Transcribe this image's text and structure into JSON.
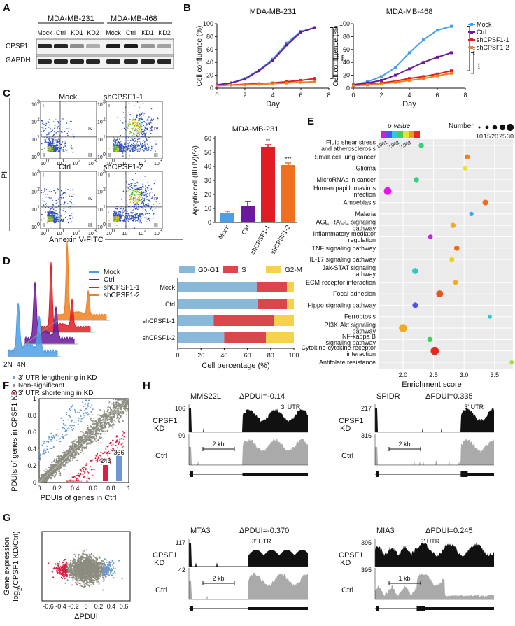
{
  "panel_labels": [
    "A",
    "B",
    "C",
    "D",
    "E",
    "F",
    "G",
    "H"
  ],
  "A": {
    "groups": [
      "MDA-MB-231",
      "MDA-MB-468"
    ],
    "lanes": [
      "Mock",
      "Ctrl",
      "KD1",
      "KD2",
      "Mock",
      "Ctrl",
      "KD1",
      "KD2"
    ],
    "rows": [
      "CPSF1",
      "GAPDH"
    ]
  },
  "B": {
    "ylabel": "Cell confluence (%)",
    "xlabel": "Day",
    "legend": [
      "Mock",
      "Ctrl",
      "shCPSF1-1",
      "shCPSF1-2"
    ],
    "sig": "***",
    "colors": {
      "Mock": "#4a9fe8",
      "Ctrl": "#6a1a9a",
      "sh1": "#e01c24",
      "sh2": "#f08020"
    },
    "chart_data": [
      {
        "type": "line",
        "title": "MDA-MB-231",
        "xlabel": "Day",
        "ylabel": "Cell confluence (%)",
        "x": [
          0,
          1,
          2,
          3,
          4,
          5,
          6,
          7
        ],
        "xlim": [
          0,
          8
        ],
        "ylim": [
          0,
          100
        ],
        "xticks": [
          0,
          2,
          4,
          6,
          8
        ],
        "yticks": [
          0,
          20,
          40,
          60,
          80,
          100
        ],
        "series": [
          {
            "name": "Mock",
            "values": [
              5,
              8,
              15,
              28,
              45,
              70,
              88,
              94
            ]
          },
          {
            "name": "Ctrl",
            "values": [
              5,
              8,
              14,
              27,
              43,
              67,
              87,
              94
            ]
          },
          {
            "name": "shCPSF1-1",
            "values": [
              4,
              5,
              6,
              7,
              8,
              10,
              12,
              15
            ]
          },
          {
            "name": "shCPSF1-2",
            "values": [
              4,
              5,
              5,
              6,
              7,
              8,
              9,
              10
            ]
          }
        ]
      },
      {
        "type": "line",
        "title": "MDA-MB-468",
        "xlabel": "Day",
        "ylabel": "Cell confluence (%)",
        "x": [
          0,
          1,
          2,
          3,
          4,
          5,
          6,
          7
        ],
        "xlim": [
          0,
          8
        ],
        "ylim": [
          0,
          100
        ],
        "xticks": [
          0,
          2,
          4,
          6,
          8
        ],
        "yticks": [
          0,
          20,
          40,
          60,
          80,
          100
        ],
        "series": [
          {
            "name": "Mock",
            "values": [
              5,
              10,
              18,
              32,
              55,
              75,
              90,
              96
            ]
          },
          {
            "name": "Ctrl",
            "values": [
              5,
              8,
              12,
              20,
              30,
              40,
              48,
              55
            ]
          },
          {
            "name": "shCPSF1-1",
            "values": [
              4,
              6,
              8,
              11,
              15,
              18,
              22,
              27
            ]
          },
          {
            "name": "shCPSF1-2",
            "values": [
              4,
              5,
              7,
              9,
              12,
              15,
              19,
              23
            ]
          }
        ]
      }
    ]
  },
  "C": {
    "plots": [
      "Mock",
      "shCPSF1-1",
      "Ctrl",
      "shCPSF1-2"
    ],
    "quadrants": [
      "I",
      "II",
      "III",
      "IV"
    ],
    "yaxis": "PI",
    "xaxis": "Annexin V-FITC",
    "tick_exponents": [
      "0",
      "1",
      "2",
      "3"
    ],
    "bar": {
      "chart_data": {
        "type": "bar",
        "title": "MDA-MB-231",
        "ylabel": "Apoptic cell (III+IV)(%)",
        "categories": [
          "Mock",
          "Ctrl",
          "shCPSF1-1",
          "shCPSF1-2"
        ],
        "values": [
          7,
          12,
          54,
          41
        ],
        "errors": [
          1,
          3,
          1.5,
          1.5
        ],
        "ylim": [
          0,
          60
        ],
        "yticks": [
          0,
          10,
          20,
          30,
          40,
          50,
          60
        ],
        "colors": [
          "#4a9fe8",
          "#6a1a9a",
          "#e01c24",
          "#f07020"
        ],
        "sig": [
          "",
          "",
          "**",
          "***"
        ]
      }
    }
  },
  "D": {
    "legend": [
      "Mock",
      "Ctrl",
      "shCPSF1-1",
      "shCPSF1-2"
    ],
    "colors": [
      "#4a9fe8",
      "#6a1a9a",
      "#e01c24",
      "#f08020"
    ],
    "ploidy": [
      "2N",
      "4N"
    ],
    "chart_data": {
      "type": "bar",
      "orientation": "horizontal",
      "stacked": true,
      "xlabel": "Cell percentage (%)",
      "xlim": [
        0,
        100
      ],
      "xticks": [
        0,
        20,
        40,
        60,
        80,
        100
      ],
      "categories": [
        "Mock",
        "Ctrl",
        "shCPSF1-1",
        "shCPSF1-2"
      ],
      "series": [
        {
          "name": "G0-G1",
          "color": "#8ab8d8",
          "values": [
            68,
            69,
            31,
            40
          ]
        },
        {
          "name": "S",
          "color": "#d9464c",
          "values": [
            26,
            25,
            52,
            36
          ]
        },
        {
          "name": "G2-M",
          "color": "#f5d24a",
          "values": [
            6,
            6,
            17,
            24
          ]
        }
      ]
    }
  },
  "E": {
    "chart_data": {
      "type": "scatter",
      "xlabel": "Enrichment score",
      "xlim": [
        1.6,
        3.8
      ],
      "xticks": [
        2.0,
        2.5,
        3.0,
        3.5
      ],
      "color_legend": {
        "title": "p value",
        "ticks": [
          "0.001",
          "0.002",
          "0.003"
        ]
      },
      "size_legend": {
        "title": "Number",
        "ticks": [
          "10",
          "15",
          "20",
          "25",
          "30"
        ]
      },
      "terms": [
        {
          "term": "Fluid shear stress and atherosclerosis",
          "x": 2.3,
          "n": 15,
          "p": 0.0015
        },
        {
          "term": "Small cell lung cancer",
          "x": 3.05,
          "n": 16,
          "p": 0.0026
        },
        {
          "term": "Glioma",
          "x": 3.02,
          "n": 12,
          "p": 0.0021
        },
        {
          "term": "MicroRNAs in cancer",
          "x": 2.22,
          "n": 15,
          "p": 0.0015
        },
        {
          "term": "Human papillomavirus infection",
          "x": 1.75,
          "n": 28,
          "p": 0.0003
        },
        {
          "term": "Amoebiasis",
          "x": 3.35,
          "n": 18,
          "p": 0.0027
        },
        {
          "term": "Malaria",
          "x": 3.12,
          "n": 11,
          "p": 0.0011
        },
        {
          "term": "AGE-RAGE signaling pathway",
          "x": 2.82,
          "n": 15,
          "p": 0.0024
        },
        {
          "term": "Inflammatory mediator regulation",
          "x": 2.45,
          "n": 12,
          "p": 0.0004
        },
        {
          "term": "TNF signaling pathway",
          "x": 2.88,
          "n": 16,
          "p": 0.0027
        },
        {
          "term": "IL-17 signaling pathway",
          "x": 2.8,
          "n": 14,
          "p": 0.0022
        },
        {
          "term": "Jak-STAT signaling pathway",
          "x": 2.2,
          "n": 20,
          "p": 0.0013
        },
        {
          "term": "ECM-receptor interaction",
          "x": 2.86,
          "n": 13,
          "p": 0.0024
        },
        {
          "term": "Focal adhesion",
          "x": 2.6,
          "n": 24,
          "p": 0.0028
        },
        {
          "term": "Hippo signaling pathway",
          "x": 2.2,
          "n": 17,
          "p": 0.0008
        },
        {
          "term": "Ferroptosis",
          "x": 3.42,
          "n": 10,
          "p": 0.0013
        },
        {
          "term": "PI3K-Akt signaling pathway",
          "x": 2.0,
          "n": 30,
          "p": 0.0024
        },
        {
          "term": "NF-kappa B signaling pathway",
          "x": 2.44,
          "n": 15,
          "p": 0.0016
        },
        {
          "term": "Cytokine-cytokine receptor interaction",
          "x": 2.52,
          "n": 30,
          "p": 0.003
        },
        {
          "term": "Antifolate resistance",
          "x": 3.78,
          "n": 10,
          "p": 0.0019
        }
      ]
    }
  },
  "F": {
    "legend": [
      "3' UTR lengthening in KD",
      "Non-significant",
      "3' UTR shortening in KD"
    ],
    "legend_colors": [
      "#6a9ad0",
      "#8c8c80",
      "#e01c40"
    ],
    "chart_data": {
      "type": "scatter",
      "xlabel": "PDUIs of genes in Ctrl",
      "ylabel": "PDUIs of genes in CPSF1 KD",
      "xlim": [
        0,
        1
      ],
      "ylim": [
        0,
        1
      ],
      "xticks": [
        "0",
        "0.2",
        "0.4",
        "0.6",
        "0.8",
        "1"
      ],
      "yticks": [
        "0",
        "0.2",
        "0.4",
        "0.6",
        "0.8",
        "1"
      ],
      "inset_bars": {
        "categories": [
          "shortening",
          "lengthening"
        ],
        "values": [
          243,
          336
        ]
      }
    }
  },
  "G": {
    "chart_data": {
      "type": "scatter",
      "xlabel": "ΔPDUI",
      "ylabel": "Gene expression log2(CPSF1 KD/Ctrl)",
      "xlim": [
        -0.7,
        0.7
      ],
      "xticks": [
        "-0.6",
        "-0.4",
        "-0.2",
        "0",
        "0.2",
        "0.4",
        "0.6"
      ]
    },
    "ylabel1": "Gene expression",
    "ylabel2a": "log",
    "ylabel2sub": "2",
    "ylabel2b": "(CPSF1 KD/Ctrl)"
  },
  "H": {
    "tracks": [
      {
        "gene": "MMS22L",
        "dpdui": "ΔPDUI=-0.14",
        "utr": "3' UTR",
        "kd_max": "106",
        "ctrl_max": "99",
        "scale": "2 kb"
      },
      {
        "gene": "SPIDR",
        "dpdui": "ΔPDUI=0.335",
        "utr": "3' UTR",
        "kd_max": "217",
        "ctrl_max": "316",
        "scale": "2 kb"
      },
      {
        "gene": "MTA3",
        "dpdui": "ΔPDUI=-0.370",
        "utr": "3' UTR",
        "kd_max": "117",
        "ctrl_max": "42",
        "scale": "2 kb"
      },
      {
        "gene": "MIA3",
        "dpdui": "ΔPDUI=0.245",
        "utr": "3' UTR",
        "kd_max": "395",
        "ctrl_max": "395",
        "scale": "1 kb"
      }
    ],
    "kd_label1": "CPSF1",
    "kd_label2": "KD",
    "ctrl_label": "Ctrl"
  }
}
